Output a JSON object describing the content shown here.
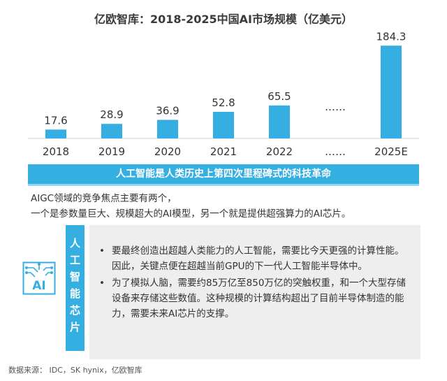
{
  "title": "亿欧智库：2018-2025中国AI市场规模（亿美元）",
  "chart_data": {
    "type": "bar",
    "title": "亿欧智库：2018-2025中国AI市场规模（亿美元）",
    "categories": [
      "2018",
      "2019",
      "2020",
      "2021",
      "2022",
      "……",
      "2025E"
    ],
    "value_labels": [
      "17.6",
      "28.9",
      "36.9",
      "52.8",
      "65.5",
      "……",
      "184.3"
    ],
    "values": [
      17.6,
      28.9,
      36.9,
      52.8,
      65.5,
      null,
      184.3
    ],
    "bar_color": "#35aee2",
    "ylim": [
      0,
      200
    ],
    "grid": false,
    "xlabel": "",
    "ylabel": ""
  },
  "banner": "人工智能是人类历史上第四次里程碑式的科技革命",
  "intro": [
    "AIGC领域的竞争焦点主要有两个，",
    "一个是参数量巨大、规模超大的AI模型，另一个就是提供超强算力的AI芯片。"
  ],
  "side_label_chars": [
    "人",
    "工",
    "智",
    "能",
    "芯",
    "片"
  ],
  "bullet_marker": "•",
  "bullets": [
    "要最终创造出超越人类能力的人工智能，需要比今天更强的计算性能。因此，关键点便在超越当前GPU的下一代人工智能半导体中。",
    "为了模拟人脑，需要约85万亿至850万亿的突触权重，和一个大型存储设备来存储这些数值。这种规模的计算结构超出了目前半导体制造的能力，需要未来AI芯片的支撑。"
  ],
  "icon": {
    "name": "ai-chip-icon",
    "text": "AI",
    "color": "#35aee2"
  },
  "source": "数据来源： IDC，SK hynix，亿欧智库"
}
